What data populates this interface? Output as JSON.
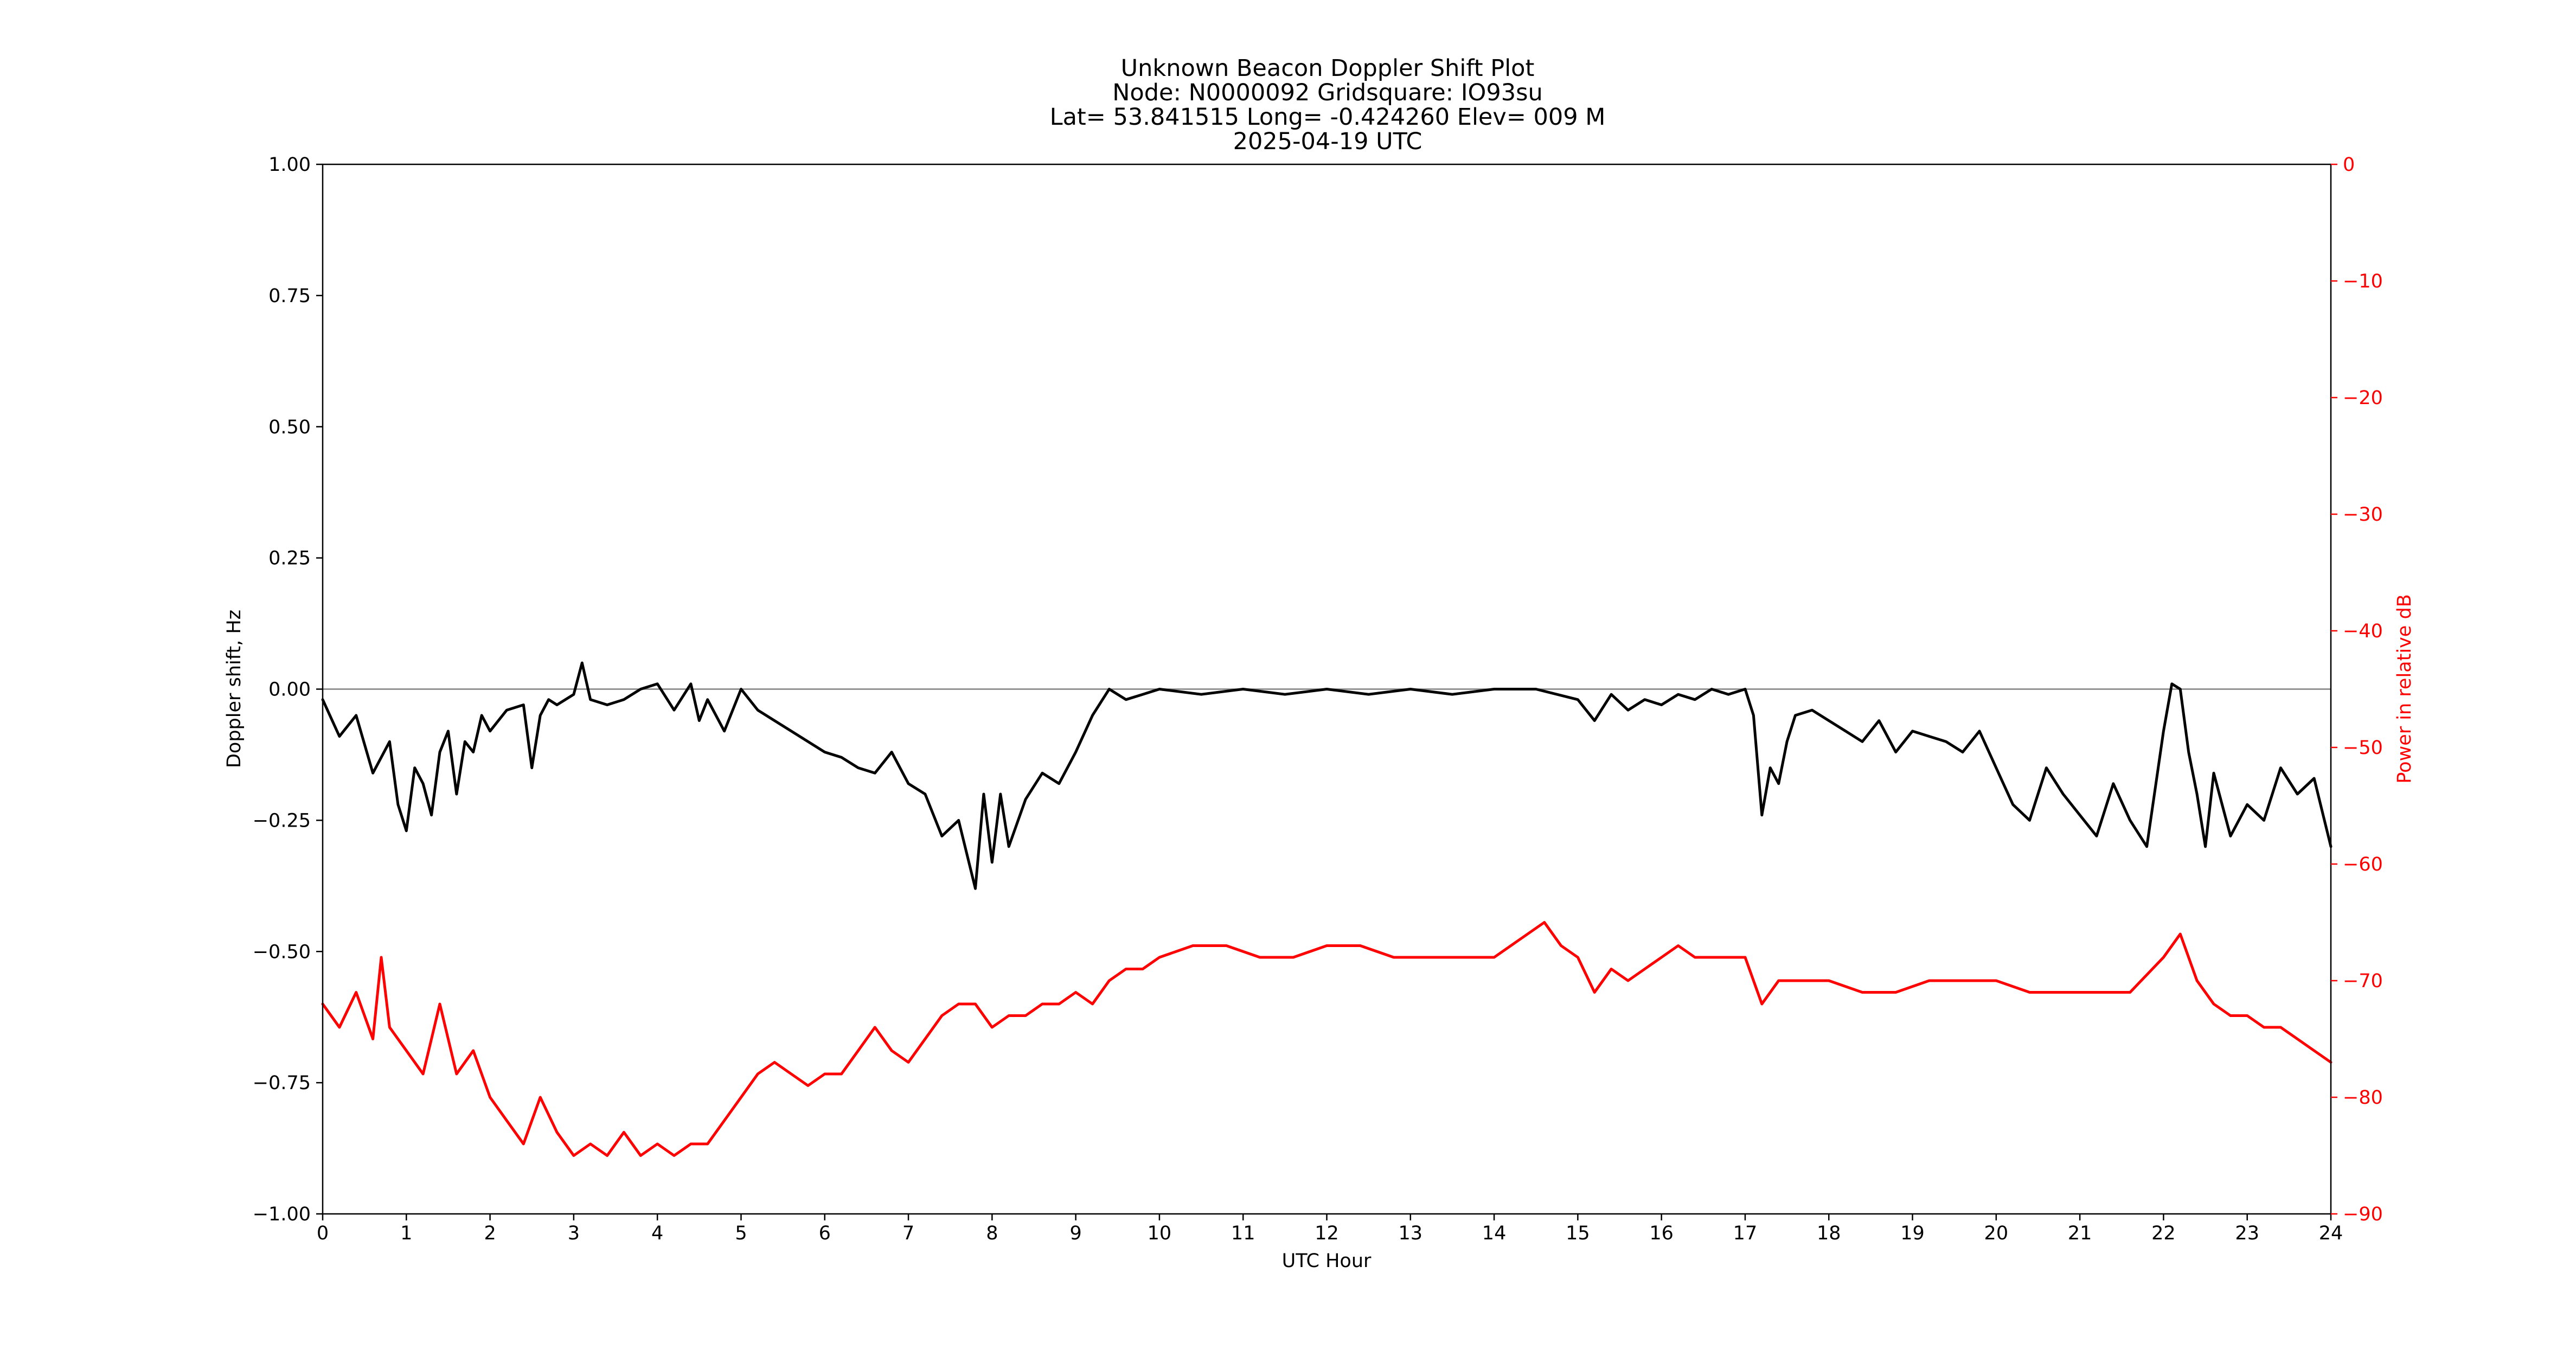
{
  "chart_data": {
    "type": "line",
    "title_lines": [
      "Unknown Beacon Doppler Shift Plot",
      "Node:  N0000092     Gridsquare:  IO93su",
      "Lat= 53.841515    Long= -0.424260    Elev= 009 M",
      "2025-04-19  UTC"
    ],
    "xlabel": "UTC Hour",
    "ylabel_left": "Doppler shift, Hz",
    "ylabel_right": "Power in relative dB",
    "xlim": [
      0,
      24
    ],
    "ylim_left": [
      -1.0,
      1.0
    ],
    "ylim_right": [
      -90,
      0
    ],
    "x_ticks": [
      0,
      1,
      2,
      3,
      4,
      5,
      6,
      7,
      8,
      9,
      10,
      11,
      12,
      13,
      14,
      15,
      16,
      17,
      18,
      19,
      20,
      21,
      22,
      23,
      24
    ],
    "x_tick_labels": [
      "0",
      "1",
      "2",
      "3",
      "4",
      "5",
      "6",
      "7",
      "8",
      "9",
      "10",
      "11",
      "12",
      "13",
      "14",
      "15",
      "16",
      "17",
      "18",
      "19",
      "20",
      "21",
      "22",
      "23",
      "24"
    ],
    "y_left_ticks": [
      1.0,
      0.75,
      0.5,
      0.25,
      0.0,
      -0.25,
      -0.5,
      -0.75,
      -1.0
    ],
    "y_left_tick_labels": [
      "1.00",
      "0.75",
      "0.50",
      "0.25",
      "0.00",
      "−0.25",
      "−0.50",
      "−0.75",
      "−1.00"
    ],
    "y_right_ticks": [
      0,
      -10,
      -20,
      -30,
      -40,
      -50,
      -60,
      -70,
      -80,
      -90
    ],
    "y_right_tick_labels": [
      "0",
      "−10",
      "−20",
      "−30",
      "−40",
      "−50",
      "−60",
      "−70",
      "−80",
      "−90"
    ],
    "reference_line": {
      "y": 0.0,
      "color": "#808080"
    },
    "left_axis_color": "#000000",
    "right_axis_color": "#ff0000",
    "grid": false,
    "series": [
      {
        "axis": "left",
        "color": "#000000",
        "x": [
          0.0,
          0.2,
          0.4,
          0.6,
          0.8,
          0.9,
          1.0,
          1.1,
          1.2,
          1.3,
          1.4,
          1.5,
          1.6,
          1.7,
          1.8,
          1.9,
          2.0,
          2.2,
          2.4,
          2.5,
          2.6,
          2.7,
          2.8,
          3.0,
          3.1,
          3.2,
          3.4,
          3.6,
          3.8,
          4.0,
          4.2,
          4.4,
          4.5,
          4.6,
          4.8,
          5.0,
          5.2,
          5.4,
          5.6,
          5.8,
          6.0,
          6.2,
          6.4,
          6.6,
          6.8,
          7.0,
          7.2,
          7.4,
          7.6,
          7.8,
          7.9,
          8.0,
          8.1,
          8.2,
          8.4,
          8.6,
          8.8,
          9.0,
          9.2,
          9.4,
          9.6,
          9.8,
          10.0,
          10.5,
          11.0,
          11.5,
          12.0,
          12.5,
          13.0,
          13.5,
          14.0,
          14.5,
          15.0,
          15.2,
          15.4,
          15.6,
          15.8,
          16.0,
          16.2,
          16.4,
          16.6,
          16.8,
          17.0,
          17.1,
          17.2,
          17.3,
          17.4,
          17.5,
          17.6,
          17.8,
          18.0,
          18.2,
          18.4,
          18.6,
          18.8,
          19.0,
          19.2,
          19.4,
          19.6,
          19.8,
          20.0,
          20.2,
          20.4,
          20.6,
          20.8,
          21.0,
          21.2,
          21.4,
          21.6,
          21.8,
          22.0,
          22.1,
          22.2,
          22.3,
          22.4,
          22.5,
          22.6,
          22.8,
          23.0,
          23.2,
          23.4,
          23.6,
          23.8,
          24.0
        ],
        "y": [
          -0.02,
          -0.09,
          -0.05,
          -0.16,
          -0.1,
          -0.22,
          -0.27,
          -0.15,
          -0.18,
          -0.24,
          -0.12,
          -0.08,
          -0.2,
          -0.1,
          -0.12,
          -0.05,
          -0.08,
          -0.04,
          -0.03,
          -0.15,
          -0.05,
          -0.02,
          -0.03,
          -0.01,
          0.05,
          -0.02,
          -0.03,
          -0.02,
          0.0,
          0.01,
          -0.04,
          0.01,
          -0.06,
          -0.02,
          -0.08,
          0.0,
          -0.04,
          -0.06,
          -0.08,
          -0.1,
          -0.12,
          -0.13,
          -0.15,
          -0.16,
          -0.12,
          -0.18,
          -0.2,
          -0.28,
          -0.25,
          -0.38,
          -0.2,
          -0.33,
          -0.2,
          -0.3,
          -0.21,
          -0.16,
          -0.18,
          -0.12,
          -0.05,
          0.0,
          -0.02,
          -0.01,
          0.0,
          -0.01,
          0.0,
          -0.01,
          0.0,
          -0.01,
          0.0,
          -0.01,
          0.0,
          0.0,
          -0.02,
          -0.06,
          -0.01,
          -0.04,
          -0.02,
          -0.03,
          -0.01,
          -0.02,
          0.0,
          -0.01,
          0.0,
          -0.05,
          -0.24,
          -0.15,
          -0.18,
          -0.1,
          -0.05,
          -0.04,
          -0.06,
          -0.08,
          -0.1,
          -0.06,
          -0.12,
          -0.08,
          -0.09,
          -0.1,
          -0.12,
          -0.08,
          -0.15,
          -0.22,
          -0.25,
          -0.15,
          -0.2,
          -0.24,
          -0.28,
          -0.18,
          -0.25,
          -0.3,
          -0.08,
          0.01,
          0.0,
          -0.12,
          -0.2,
          -0.3,
          -0.16,
          -0.28,
          -0.22,
          -0.25,
          -0.15,
          -0.2,
          -0.17,
          -0.3
        ]
      },
      {
        "axis": "right",
        "color": "#ff0000",
        "x": [
          0.0,
          0.2,
          0.4,
          0.6,
          0.7,
          0.8,
          1.0,
          1.2,
          1.3,
          1.4,
          1.6,
          1.8,
          2.0,
          2.2,
          2.4,
          2.6,
          2.8,
          3.0,
          3.2,
          3.4,
          3.6,
          3.8,
          4.0,
          4.2,
          4.4,
          4.6,
          4.8,
          5.0,
          5.2,
          5.4,
          5.6,
          5.8,
          6.0,
          6.2,
          6.4,
          6.6,
          6.8,
          7.0,
          7.2,
          7.4,
          7.6,
          7.8,
          8.0,
          8.2,
          8.4,
          8.6,
          8.8,
          9.0,
          9.2,
          9.4,
          9.6,
          9.8,
          10.0,
          10.4,
          10.8,
          11.2,
          11.6,
          12.0,
          12.4,
          12.8,
          13.2,
          13.6,
          14.0,
          14.4,
          14.6,
          14.8,
          15.0,
          15.2,
          15.4,
          15.6,
          15.8,
          16.0,
          16.2,
          16.4,
          16.6,
          16.8,
          17.0,
          17.2,
          17.4,
          17.6,
          17.8,
          18.0,
          18.4,
          18.8,
          19.2,
          19.6,
          20.0,
          20.4,
          20.8,
          21.2,
          21.6,
          22.0,
          22.2,
          22.4,
          22.6,
          22.8,
          23.0,
          23.2,
          23.4,
          23.6,
          23.8,
          24.0
        ],
        "y": [
          -72,
          -74,
          -71,
          -75,
          -68,
          -74,
          -76,
          -78,
          -75,
          -72,
          -78,
          -76,
          -80,
          -82,
          -84,
          -80,
          -83,
          -85,
          -84,
          -85,
          -83,
          -85,
          -84,
          -85,
          -84,
          -84,
          -82,
          -80,
          -78,
          -77,
          -78,
          -79,
          -78,
          -78,
          -76,
          -74,
          -76,
          -77,
          -75,
          -73,
          -72,
          -72,
          -74,
          -73,
          -73,
          -72,
          -72,
          -71,
          -72,
          -70,
          -69,
          -69,
          -68,
          -67,
          -67,
          -68,
          -68,
          -67,
          -67,
          -68,
          -68,
          -68,
          -68,
          -66,
          -65,
          -67,
          -68,
          -71,
          -69,
          -70,
          -69,
          -68,
          -67,
          -68,
          -68,
          -68,
          -68,
          -72,
          -70,
          -70,
          -70,
          -70,
          -71,
          -71,
          -70,
          -70,
          -70,
          -71,
          -71,
          -71,
          -71,
          -68,
          -66,
          -70,
          -72,
          -73,
          -73,
          -74,
          -74,
          -75,
          -76,
          -77
        ]
      }
    ]
  }
}
